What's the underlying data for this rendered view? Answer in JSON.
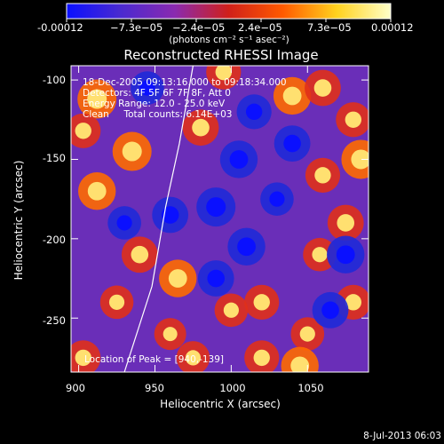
{
  "colorbar": {
    "tick_labels": [
      "-0.00012",
      "−7.3e−05",
      "−2.4e−05",
      "2.4e−05",
      "7.3e−05",
      "0.00012"
    ],
    "unit_label": "(photons cm⁻² s⁻¹ asec⁻²)",
    "colors": [
      "#0a10ff",
      "#4a2ad0",
      "#8a2ab0",
      "#d0201a",
      "#ff5a00",
      "#ffd21e",
      "#ffffc8"
    ]
  },
  "chart_data": {
    "type": "heatmap",
    "title": "Reconstructed RHESSI Image",
    "xlabel": "Heliocentric X (arcsec)",
    "ylabel": "Heliocentric Y (arcsec)",
    "xlim": [
      895,
      1090
    ],
    "ylim": [
      -284,
      -91
    ],
    "xticks": [
      900,
      950,
      1000,
      1050
    ],
    "yticks": [
      -100,
      -150,
      -200,
      -250
    ],
    "value_range": [
      -0.00012,
      0.00012
    ],
    "annotations": [
      "18-Dec-2005 09:13:16.000 to 09:18:34.000",
      "Detectors: 4F 5F 6F 7F 8F, Att 0",
      "Energy Range: 12.0 - 25.0 keV",
      "Clean     Total counts: 6.14E+03"
    ],
    "peak_label": "Location of Peak = [940,-139]",
    "peak": [
      940,
      -139
    ],
    "limb_points": [
      [
        930,
        -284
      ],
      [
        948,
        -230
      ],
      [
        957,
        -180
      ],
      [
        966,
        -140
      ],
      [
        975,
        -91
      ]
    ],
    "blobs": [
      {
        "x": 912,
        "y": -112,
        "v": 1.0
      },
      {
        "x": 935,
        "y": -145,
        "v": 1.0
      },
      {
        "x": 903,
        "y": -132,
        "v": 0.7
      },
      {
        "x": 912,
        "y": -170,
        "v": 0.9
      },
      {
        "x": 940,
        "y": -210,
        "v": 0.8
      },
      {
        "x": 925,
        "y": -240,
        "v": 0.6
      },
      {
        "x": 903,
        "y": -275,
        "v": 0.7
      },
      {
        "x": 965,
        "y": -225,
        "v": 0.9
      },
      {
        "x": 980,
        "y": -130,
        "v": 0.8
      },
      {
        "x": 995,
        "y": -95,
        "v": 0.7
      },
      {
        "x": 1040,
        "y": -110,
        "v": 0.9
      },
      {
        "x": 1060,
        "y": -105,
        "v": 0.8
      },
      {
        "x": 1080,
        "y": -125,
        "v": 0.7
      },
      {
        "x": 1085,
        "y": -150,
        "v": 1.0
      },
      {
        "x": 1060,
        "y": -160,
        "v": 0.7
      },
      {
        "x": 1075,
        "y": -190,
        "v": 0.8
      },
      {
        "x": 1058,
        "y": -210,
        "v": 0.6
      },
      {
        "x": 1020,
        "y": -240,
        "v": 0.7
      },
      {
        "x": 1000,
        "y": -245,
        "v": 0.6
      },
      {
        "x": 1050,
        "y": -260,
        "v": 0.6
      },
      {
        "x": 1045,
        "y": -280,
        "v": 0.9
      },
      {
        "x": 1020,
        "y": -275,
        "v": 0.7
      },
      {
        "x": 1080,
        "y": -240,
        "v": 0.7
      },
      {
        "x": 975,
        "y": -275,
        "v": 0.6
      },
      {
        "x": 960,
        "y": -260,
        "v": 0.5
      },
      {
        "x": 990,
        "y": -180,
        "v": -1.0
      },
      {
        "x": 960,
        "y": -185,
        "v": -0.8
      },
      {
        "x": 1010,
        "y": -205,
        "v": -0.9
      },
      {
        "x": 1040,
        "y": -140,
        "v": -0.8
      },
      {
        "x": 1005,
        "y": -150,
        "v": -0.9
      },
      {
        "x": 1075,
        "y": -210,
        "v": -0.9
      },
      {
        "x": 1065,
        "y": -245,
        "v": -0.8
      },
      {
        "x": 990,
        "y": -225,
        "v": -0.8
      },
      {
        "x": 930,
        "y": -190,
        "v": -0.6
      },
      {
        "x": 1015,
        "y": -120,
        "v": -0.7
      },
      {
        "x": 1030,
        "y": -175,
        "v": -0.6
      },
      {
        "x": 945,
        "y": -105,
        "v": -0.6
      }
    ]
  },
  "footer": {
    "timestamp": "8-Jul-2013 06:03"
  }
}
